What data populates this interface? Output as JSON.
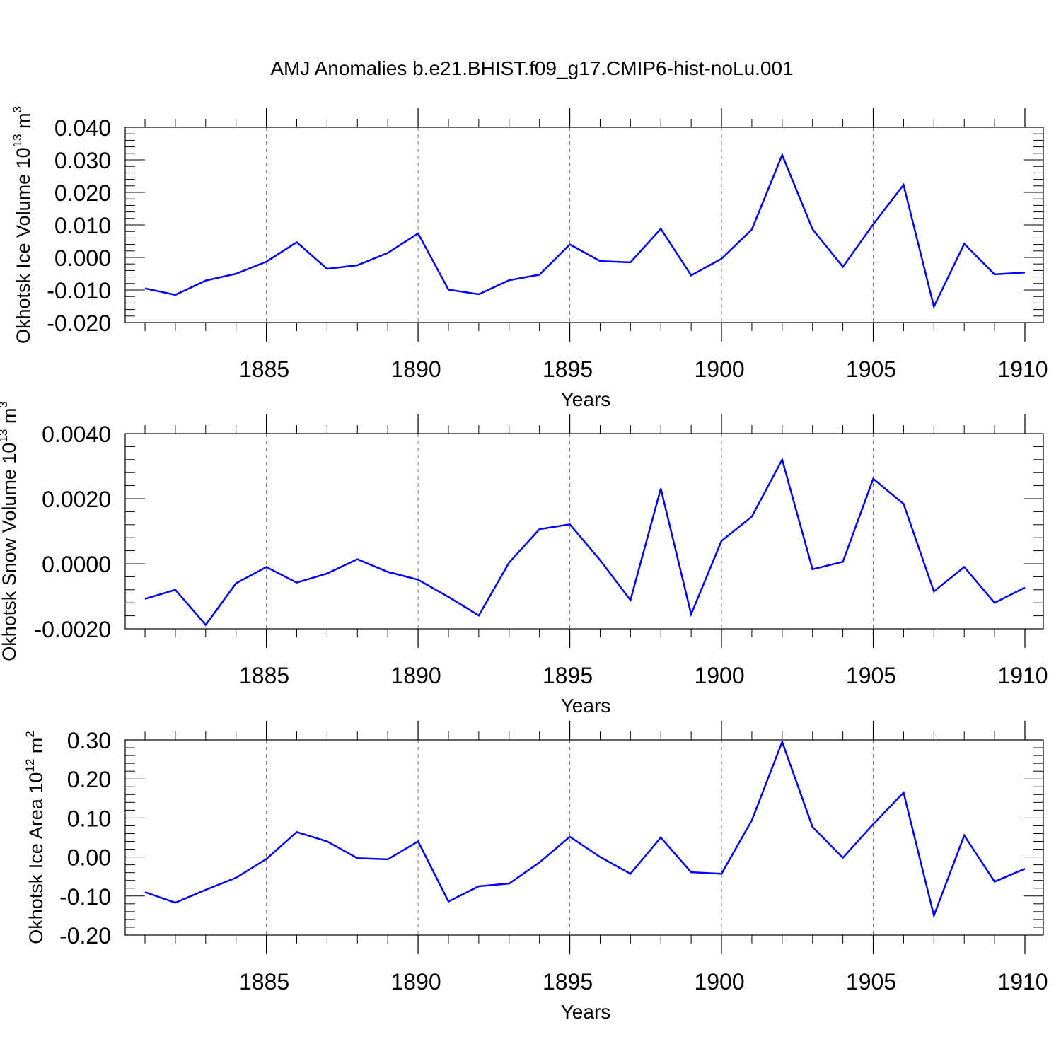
{
  "title": "AMJ Anomalies b.e21.BHIST.f09_g17.CMIP6-hist-noLu.001",
  "line_color": "#0000ff",
  "chart_data": [
    {
      "type": "line",
      "ylabel_main": "Okhotsk Ice Volume 10",
      "ylabel_exp": "13",
      "ylabel_unit": "m",
      "ylabel_unit_exp": "3",
      "xlabel": "Years",
      "xlim": [
        1881,
        1910
      ],
      "ylim": [
        -0.02,
        0.04
      ],
      "yticks": [
        -0.02,
        -0.01,
        0.0,
        0.01,
        0.02,
        0.03,
        0.04
      ],
      "ytick_labels": [
        "-0.020",
        "-0.010",
        "0.000",
        "0.010",
        "0.020",
        "0.030",
        "0.040"
      ],
      "xticks": [
        1885,
        1890,
        1895,
        1900,
        1905,
        1910
      ],
      "xtick_labels": [
        "1885",
        "1890",
        "1895",
        "1900",
        "1905",
        "1910"
      ],
      "grid": "dashed vertical at major x ticks",
      "x": [
        1881,
        1882,
        1883,
        1884,
        1885,
        1886,
        1887,
        1888,
        1889,
        1890,
        1891,
        1892,
        1893,
        1894,
        1895,
        1896,
        1897,
        1898,
        1899,
        1900,
        1901,
        1902,
        1903,
        1904,
        1905,
        1906,
        1907,
        1908,
        1909,
        1910
      ],
      "series": [
        {
          "values": [
            -0.0095,
            -0.0115,
            -0.0071,
            -0.005,
            -0.0013,
            0.0047,
            -0.0035,
            -0.0024,
            0.0014,
            0.0074,
            -0.0099,
            -0.0113,
            -0.007,
            -0.0053,
            0.004,
            -0.0011,
            -0.0015,
            0.0088,
            -0.0055,
            -0.0004,
            0.0086,
            0.0315,
            0.0087,
            -0.0029,
            0.0102,
            0.0223,
            -0.0151,
            0.0042,
            -0.0052,
            -0.0046
          ]
        }
      ]
    },
    {
      "type": "line",
      "ylabel_main": "Okhotsk Snow Volume 10",
      "ylabel_exp": "13",
      "ylabel_unit": "m",
      "ylabel_unit_exp": "3",
      "xlabel": "Years",
      "xlim": [
        1881,
        1910
      ],
      "ylim": [
        -0.002,
        0.004
      ],
      "yticks": [
        -0.002,
        0.0,
        0.002,
        0.004
      ],
      "ytick_labels": [
        "-0.0020",
        "0.0000",
        "0.0020",
        "0.0040"
      ],
      "xticks": [
        1885,
        1890,
        1895,
        1900,
        1905,
        1910
      ],
      "xtick_labels": [
        "1885",
        "1890",
        "1895",
        "1900",
        "1905",
        "1910"
      ],
      "grid": "dashed vertical at major x ticks",
      "x": [
        1881,
        1882,
        1883,
        1884,
        1885,
        1886,
        1887,
        1888,
        1889,
        1890,
        1891,
        1892,
        1893,
        1894,
        1895,
        1896,
        1897,
        1898,
        1899,
        1900,
        1901,
        1902,
        1903,
        1904,
        1905,
        1906,
        1907,
        1908,
        1909,
        1910
      ],
      "series": [
        {
          "values": [
            -0.00108,
            -0.0008,
            -0.00188,
            -0.0006,
            -0.0001,
            -0.00058,
            -0.0003,
            0.00014,
            -0.00025,
            -0.00049,
            -0.00102,
            -0.00159,
            4e-05,
            0.00106,
            0.00121,
            0.00011,
            -0.00112,
            0.00231,
            -0.00155,
            0.0007,
            0.00145,
            0.0032,
            -0.00017,
            6e-05,
            0.00261,
            0.00184,
            -0.00085,
            -0.0001,
            -0.0012,
            -0.00073
          ]
        }
      ]
    },
    {
      "type": "line",
      "ylabel_main": "Okhotsk Ice Area 10",
      "ylabel_exp": "12",
      "ylabel_unit": "m",
      "ylabel_unit_exp": "2",
      "xlabel": "Years",
      "xlim": [
        1881,
        1910
      ],
      "ylim": [
        -0.2,
        0.3
      ],
      "yticks": [
        -0.2,
        -0.1,
        0.0,
        0.1,
        0.2,
        0.3
      ],
      "ytick_labels": [
        "-0.20",
        "-0.10",
        "0.00",
        "0.10",
        "0.20",
        "0.30"
      ],
      "xticks": [
        1885,
        1890,
        1895,
        1900,
        1905,
        1910
      ],
      "xtick_labels": [
        "1885",
        "1890",
        "1895",
        "1900",
        "1905",
        "1910"
      ],
      "grid": "dashed vertical at major x ticks",
      "x": [
        1881,
        1882,
        1883,
        1884,
        1885,
        1886,
        1887,
        1888,
        1889,
        1890,
        1891,
        1892,
        1893,
        1894,
        1895,
        1896,
        1897,
        1898,
        1899,
        1900,
        1901,
        1902,
        1903,
        1904,
        1905,
        1906,
        1907,
        1908,
        1909,
        1910
      ],
      "series": [
        {
          "values": [
            -0.09,
            -0.117,
            -0.084,
            -0.053,
            -0.005,
            0.064,
            0.04,
            -0.003,
            -0.006,
            0.04,
            -0.114,
            -0.075,
            -0.068,
            -0.014,
            0.052,
            0.0,
            -0.043,
            0.05,
            -0.039,
            -0.043,
            0.094,
            0.295,
            0.077,
            -0.002,
            0.084,
            0.165,
            -0.15,
            0.055,
            -0.063,
            -0.03
          ]
        }
      ]
    }
  ]
}
